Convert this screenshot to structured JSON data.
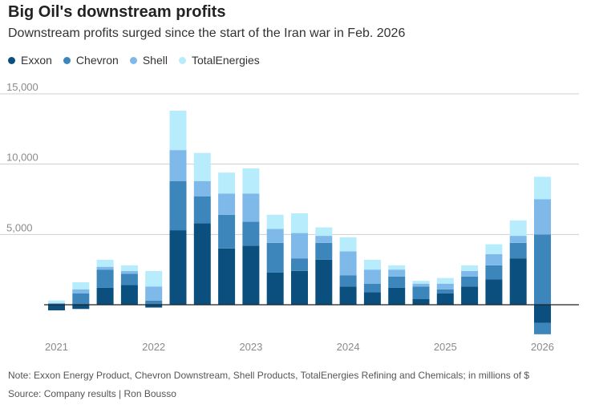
{
  "title": "Big Oil's downstream profits",
  "subtitle": "Downstream profits surged since the start of the Iran war in Feb. 2026",
  "note": "Note: Exxon Energy Product, Chevron Downstream, Shell Products, TotalEnergies Refining and Chemicals; in millions of $",
  "source": "Source: Company results | Ron Bousso",
  "chart_data": {
    "type": "bar",
    "stacked": true,
    "title": "",
    "xlabel": "",
    "ylabel": "",
    "ylim": [
      -2500,
      15000
    ],
    "y_ticks": [
      5000,
      10000,
      15000
    ],
    "y_tick_labels": [
      "5,000",
      "10,000",
      "15,000"
    ],
    "x_tick_labels": [
      "2021",
      "2022",
      "2023",
      "2024",
      "2025",
      "2026"
    ],
    "x_tick_category_index": [
      0,
      4,
      8,
      12,
      16,
      20
    ],
    "grid": true,
    "legend_position": "top-left",
    "categories": [
      "Q1 2021",
      "Q2 2021",
      "Q3 2021",
      "Q4 2021",
      "Q1 2022",
      "Q2 2022",
      "Q3 2022",
      "Q4 2022",
      "Q1 2023",
      "Q2 2023",
      "Q3 2023",
      "Q4 2023",
      "Q1 2024",
      "Q2 2024",
      "Q3 2024",
      "Q4 2024",
      "Q1 2025",
      "Q2 2025",
      "Q3 2025",
      "Q4 2025",
      "Q1 2026"
    ],
    "series": [
      {
        "name": "Exxon",
        "color": "#0b4f7f",
        "values": [
          -400,
          -300,
          1200,
          1400,
          -200,
          5300,
          5800,
          4000,
          4200,
          2300,
          2400,
          3200,
          1300,
          900,
          1200,
          400,
          800,
          1300,
          1800,
          3300,
          -1300
        ]
      },
      {
        "name": "Chevron",
        "color": "#3d86bb",
        "values": [
          100,
          800,
          1300,
          800,
          300,
          3500,
          1900,
          2400,
          1700,
          2100,
          900,
          1200,
          800,
          600,
          800,
          900,
          300,
          700,
          1000,
          1100,
          5000
        ]
      },
      {
        "name": "Shell",
        "color": "#7eb9ea",
        "values": [
          0,
          300,
          200,
          200,
          1000,
          2200,
          1100,
          1500,
          2000,
          1000,
          1800,
          500,
          1700,
          1000,
          500,
          200,
          400,
          400,
          800,
          500,
          2500
        ]
      },
      {
        "name": "TotalEnergies",
        "color": "#b7ecfc",
        "values": [
          200,
          500,
          500,
          400,
          1100,
          2800,
          2000,
          1500,
          1800,
          1000,
          1400,
          600,
          1000,
          700,
          300,
          200,
          400,
          400,
          700,
          1100,
          1600
        ]
      }
    ],
    "negative_extra": [
      {
        "series": "Chevron",
        "index": 20,
        "value": -800
      }
    ]
  }
}
